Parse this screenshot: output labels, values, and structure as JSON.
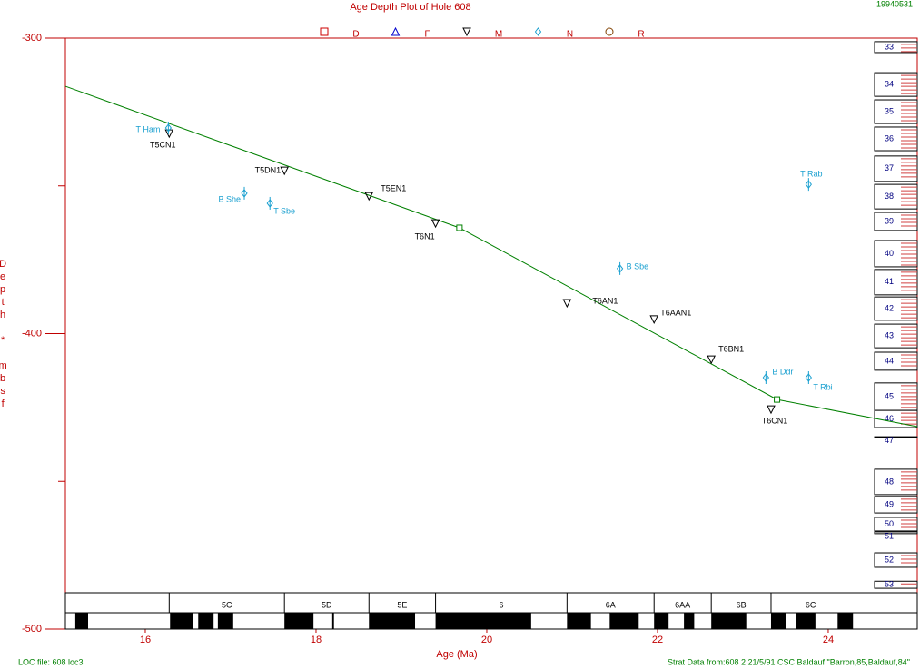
{
  "chart_data": {
    "type": "scatter",
    "title": "Age Depth Plot of Hole 608",
    "date_stamp": "19940531",
    "x_label": "Age (Ma)",
    "y_label": "Depth * mbsf",
    "footer_left": "LOC file: 608 loc3",
    "footer_right": "Strat Data from:608 2 21/5/91 CSC Baldauf \"Barron,85,Baldauf,84\"",
    "xlim": [
      15.064,
      25.043
    ],
    "ylim": [
      -300,
      -500
    ],
    "xticks": [
      16,
      18,
      20,
      22,
      24
    ],
    "yticks": [
      -300,
      -400,
      -500
    ],
    "yticks_minor": [
      -350,
      -450
    ],
    "axis_color": "#c00000",
    "series": [
      {
        "name": "D",
        "color": "#cc0000",
        "marker": "square",
        "x": [],
        "values": [],
        "labels": []
      },
      {
        "name": "F",
        "color": "#0000cc",
        "marker": "triangle-up",
        "x": [],
        "values": [],
        "labels": []
      },
      {
        "name": "M",
        "color": "#000000",
        "label_color": "#000000",
        "marker": "triangle-down",
        "x": [
          16.28,
          17.63,
          18.62,
          19.4,
          20.94,
          21.96,
          22.63,
          23.33
        ],
        "values": [
          -332.3,
          -344.9,
          -353.5,
          -362.7,
          -389.7,
          -395.2,
          -408.8,
          -425.7
        ],
        "labels": [
          "T5CN1",
          "T5DN1",
          "T5EN1",
          "T6N1",
          "T6AN1",
          "T6AAN1",
          "T6BN1",
          "T6CN1"
        ]
      },
      {
        "name": "N",
        "color": "#1aa0d0",
        "label_color": "#1aa0d0",
        "marker": "diamond",
        "x": [
          16.27,
          17.16,
          17.46,
          21.56,
          23.77,
          23.27,
          23.77
        ],
        "values": [
          -330.4,
          -352.5,
          -355.9,
          -378.0,
          -349.5,
          -414.9,
          -414.9
        ],
        "labels": [
          "T Ham",
          "B She",
          "T Sbe",
          "B Sbe",
          "T Rab",
          "B Ddr",
          "T Rbi"
        ]
      },
      {
        "name": "R",
        "color": "#804000",
        "marker": "circle",
        "x": [],
        "values": [],
        "labels": []
      }
    ],
    "age_model": {
      "color": "#008000",
      "x": [
        15.064,
        19.68,
        23.4,
        25.043
      ],
      "values": [
        -316.3,
        -364.2,
        -422.3,
        -431.5
      ]
    },
    "cores": [
      {
        "label": "33",
        "top": -301.2,
        "bottom": -304.9
      },
      {
        "label": "34",
        "top": -311.7,
        "bottom": -319.7
      },
      {
        "label": "35",
        "top": -320.9,
        "bottom": -328.9
      },
      {
        "label": "36",
        "top": -330.1,
        "bottom": -338.1
      },
      {
        "label": "37",
        "top": -339.9,
        "bottom": -348.5
      },
      {
        "label": "38",
        "top": -349.5,
        "bottom": -357.8
      },
      {
        "label": "39",
        "top": -359.0,
        "bottom": -365.1
      },
      {
        "label": "40",
        "top": -368.5,
        "bottom": -377.4
      },
      {
        "label": "41",
        "top": -378.3,
        "bottom": -386.9
      },
      {
        "label": "42",
        "top": -387.6,
        "bottom": -395.5
      },
      {
        "label": "43",
        "top": -396.8,
        "bottom": -404.8
      },
      {
        "label": "44",
        "top": -406.3,
        "bottom": -412.4
      },
      {
        "label": "45",
        "top": -416.7,
        "bottom": -426.0
      },
      {
        "label": "46",
        "top": -426.0,
        "bottom": -431.8
      },
      {
        "label": "47",
        "top": -434.9,
        "bottom": -435.2
      },
      {
        "label": "48",
        "top": -445.9,
        "bottom": -454.5
      },
      {
        "label": "49",
        "top": -455.1,
        "bottom": -460.7
      },
      {
        "label": "50",
        "top": -462.2,
        "bottom": -466.8
      },
      {
        "label": "51",
        "top": -467.1,
        "bottom": -467.7
      },
      {
        "label": "52",
        "top": -474.2,
        "bottom": -479.1
      },
      {
        "label": "53",
        "top": -483.8,
        "bottom": -486.2
      }
    ],
    "chrons": [
      {
        "label": "5C",
        "start": 16.28,
        "end": 17.63
      },
      {
        "label": "5D",
        "start": 17.63,
        "end": 18.62
      },
      {
        "label": "5E",
        "start": 18.62,
        "end": 19.4
      },
      {
        "label": "6",
        "start": 19.4,
        "end": 20.94
      },
      {
        "label": "6A",
        "start": 20.94,
        "end": 21.96
      },
      {
        "label": "6AA",
        "start": 21.96,
        "end": 22.63
      },
      {
        "label": "6B",
        "start": 22.63,
        "end": 23.33
      },
      {
        "label": "6C",
        "start": 23.33,
        "end": 24.26
      }
    ],
    "normal_polarity": [
      [
        15.18,
        15.33
      ],
      [
        16.29,
        16.56
      ],
      [
        16.62,
        16.8
      ],
      [
        16.85,
        17.03
      ],
      [
        17.63,
        17.97
      ],
      [
        18.19,
        18.21
      ],
      [
        18.62,
        19.16
      ],
      [
        19.4,
        20.52
      ],
      [
        20.94,
        21.22
      ],
      [
        21.44,
        21.78
      ],
      [
        21.96,
        22.13
      ],
      [
        22.31,
        22.43
      ],
      [
        22.63,
        23.04
      ],
      [
        23.33,
        23.51
      ],
      [
        23.62,
        23.85
      ],
      [
        24.11,
        24.29
      ]
    ]
  }
}
